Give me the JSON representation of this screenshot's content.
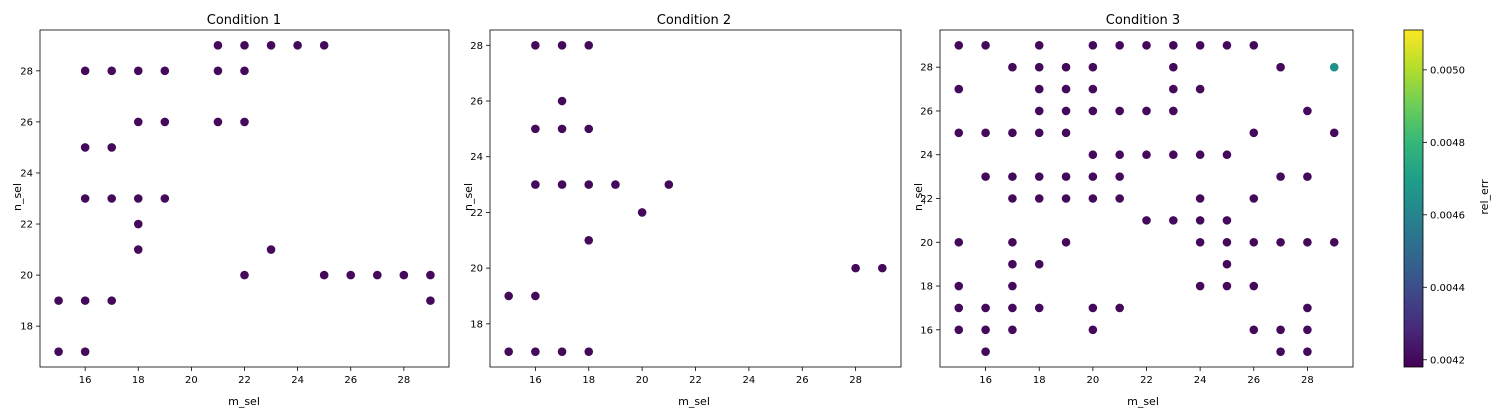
{
  "chart_data": [
    {
      "type": "scatter",
      "title": "Condition 1",
      "xlabel": "m_sel",
      "ylabel": "n_sel",
      "xlim": [
        14.3,
        29.7
      ],
      "ylim": [
        16.4,
        29.6
      ],
      "xticks": [
        16,
        18,
        20,
        22,
        24,
        26,
        28
      ],
      "yticks": [
        18,
        20,
        22,
        24,
        26,
        28
      ],
      "grid": false,
      "points": [
        [
          15,
          17
        ],
        [
          16,
          17
        ],
        [
          15,
          19
        ],
        [
          16,
          19
        ],
        [
          17,
          19
        ],
        [
          16,
          23
        ],
        [
          17,
          23
        ],
        [
          16,
          25
        ],
        [
          17,
          25
        ],
        [
          16,
          28
        ],
        [
          17,
          28
        ],
        [
          18,
          28
        ],
        [
          19,
          28
        ],
        [
          18,
          26
        ],
        [
          19,
          26
        ],
        [
          18,
          23
        ],
        [
          19,
          23
        ],
        [
          18,
          22
        ],
        [
          18,
          21
        ],
        [
          21,
          29
        ],
        [
          22,
          29
        ],
        [
          23,
          29
        ],
        [
          24,
          29
        ],
        [
          25,
          29
        ],
        [
          21,
          28
        ],
        [
          22,
          28
        ],
        [
          21,
          26
        ],
        [
          22,
          26
        ],
        [
          22,
          20
        ],
        [
          23,
          21
        ],
        [
          25,
          20
        ],
        [
          26,
          20
        ],
        [
          27,
          20
        ],
        [
          28,
          20
        ],
        [
          29,
          20
        ],
        [
          29,
          19
        ]
      ],
      "values": [
        0.0042,
        0.0042,
        0.0042,
        0.0042,
        0.0042,
        0.0042,
        0.0042,
        0.0042,
        0.0042,
        0.0042,
        0.0042,
        0.0042,
        0.0042,
        0.0042,
        0.0042,
        0.0042,
        0.0042,
        0.0042,
        0.0042,
        0.0042,
        0.0042,
        0.0042,
        0.0042,
        0.0042,
        0.0042,
        0.0042,
        0.0042,
        0.0042,
        0.0042,
        0.0042,
        0.0042,
        0.0042,
        0.0042,
        0.0042,
        0.0042,
        0.0042
      ]
    },
    {
      "type": "scatter",
      "title": "Condition 2",
      "xlabel": "m_sel",
      "ylabel": "n_sel",
      "xlim": [
        14.3,
        29.7
      ],
      "ylim": [
        16.45,
        28.55
      ],
      "xticks": [
        16,
        18,
        20,
        22,
        24,
        26,
        28
      ],
      "yticks": [
        18,
        20,
        22,
        24,
        26,
        28
      ],
      "grid": false,
      "points": [
        [
          16,
          28
        ],
        [
          17,
          28
        ],
        [
          18,
          28
        ],
        [
          17,
          26
        ],
        [
          16,
          25
        ],
        [
          17,
          25
        ],
        [
          18,
          25
        ],
        [
          16,
          23
        ],
        [
          17,
          23
        ],
        [
          18,
          23
        ],
        [
          19,
          23
        ],
        [
          21,
          23
        ],
        [
          20,
          22
        ],
        [
          18,
          21
        ],
        [
          15,
          19
        ],
        [
          16,
          19
        ],
        [
          15,
          17
        ],
        [
          16,
          17
        ],
        [
          17,
          17
        ],
        [
          18,
          17
        ],
        [
          28,
          20
        ],
        [
          29,
          20
        ]
      ],
      "values": [
        0.0042,
        0.0042,
        0.0042,
        0.0042,
        0.0042,
        0.0042,
        0.0042,
        0.0042,
        0.0042,
        0.0042,
        0.0042,
        0.0042,
        0.0042,
        0.0042,
        0.0042,
        0.0042,
        0.0042,
        0.0042,
        0.0042,
        0.0042,
        0.0042,
        0.0042
      ]
    },
    {
      "type": "scatter",
      "title": "Condition 3",
      "xlabel": "m_sel",
      "ylabel": "n_sel",
      "xlim": [
        14.3,
        29.7
      ],
      "ylim": [
        14.3,
        29.7
      ],
      "xticks": [
        16,
        18,
        20,
        22,
        24,
        26,
        28
      ],
      "yticks": [
        16,
        18,
        20,
        22,
        24,
        26,
        28
      ],
      "grid": false,
      "points": [
        [
          15,
          29
        ],
        [
          16,
          29
        ],
        [
          18,
          29
        ],
        [
          20,
          29
        ],
        [
          21,
          29
        ],
        [
          22,
          29
        ],
        [
          23,
          29
        ],
        [
          24,
          29
        ],
        [
          25,
          29
        ],
        [
          26,
          29
        ],
        [
          17,
          28
        ],
        [
          18,
          28
        ],
        [
          19,
          28
        ],
        [
          20,
          28
        ],
        [
          23,
          28
        ],
        [
          27,
          28
        ],
        [
          29,
          28
        ],
        [
          15,
          27
        ],
        [
          18,
          27
        ],
        [
          19,
          27
        ],
        [
          20,
          27
        ],
        [
          23,
          27
        ],
        [
          24,
          27
        ],
        [
          18,
          26
        ],
        [
          19,
          26
        ],
        [
          20,
          26
        ],
        [
          21,
          26
        ],
        [
          22,
          26
        ],
        [
          23,
          26
        ],
        [
          28,
          26
        ],
        [
          15,
          25
        ],
        [
          16,
          25
        ],
        [
          17,
          25
        ],
        [
          18,
          25
        ],
        [
          19,
          25
        ],
        [
          26,
          25
        ],
        [
          29,
          25
        ],
        [
          20,
          24
        ],
        [
          21,
          24
        ],
        [
          22,
          24
        ],
        [
          23,
          24
        ],
        [
          24,
          24
        ],
        [
          25,
          24
        ],
        [
          16,
          23
        ],
        [
          17,
          23
        ],
        [
          18,
          23
        ],
        [
          19,
          23
        ],
        [
          20,
          23
        ],
        [
          21,
          23
        ],
        [
          27,
          23
        ],
        [
          28,
          23
        ],
        [
          17,
          22
        ],
        [
          18,
          22
        ],
        [
          19,
          22
        ],
        [
          20,
          22
        ],
        [
          21,
          22
        ],
        [
          24,
          22
        ],
        [
          26,
          22
        ],
        [
          22,
          21
        ],
        [
          23,
          21
        ],
        [
          24,
          21
        ],
        [
          25,
          21
        ],
        [
          15,
          20
        ],
        [
          17,
          20
        ],
        [
          19,
          20
        ],
        [
          24,
          20
        ],
        [
          25,
          20
        ],
        [
          26,
          20
        ],
        [
          27,
          20
        ],
        [
          28,
          20
        ],
        [
          29,
          20
        ],
        [
          17,
          19
        ],
        [
          18,
          19
        ],
        [
          25,
          19
        ],
        [
          15,
          18
        ],
        [
          17,
          18
        ],
        [
          24,
          18
        ],
        [
          25,
          18
        ],
        [
          26,
          18
        ],
        [
          15,
          17
        ],
        [
          16,
          17
        ],
        [
          17,
          17
        ],
        [
          18,
          17
        ],
        [
          20,
          17
        ],
        [
          21,
          17
        ],
        [
          28,
          17
        ],
        [
          15,
          16
        ],
        [
          16,
          16
        ],
        [
          17,
          16
        ],
        [
          20,
          16
        ],
        [
          26,
          16
        ],
        [
          27,
          16
        ],
        [
          28,
          16
        ],
        [
          16,
          15
        ],
        [
          27,
          15
        ],
        [
          28,
          15
        ]
      ],
      "values": [
        0.0042,
        0.0042,
        0.0042,
        0.0042,
        0.0042,
        0.0042,
        0.0042,
        0.0042,
        0.0042,
        0.0042,
        0.0042,
        0.0042,
        0.0042,
        0.0042,
        0.0042,
        0.0042,
        0.00465,
        0.0042,
        0.0042,
        0.0042,
        0.0042,
        0.0042,
        0.0042,
        0.0042,
        0.0042,
        0.0042,
        0.0042,
        0.0042,
        0.0042,
        0.0042,
        0.0042,
        0.0042,
        0.0042,
        0.0042,
        0.0042,
        0.0042,
        0.0042,
        0.0042,
        0.0042,
        0.0042,
        0.0042,
        0.0042,
        0.0042,
        0.0042,
        0.0042,
        0.0042,
        0.0042,
        0.0042,
        0.0042,
        0.0042,
        0.0042,
        0.0042,
        0.0042,
        0.0042,
        0.0042,
        0.0042,
        0.0042,
        0.0042,
        0.0042,
        0.0042,
        0.0042,
        0.0042,
        0.0042,
        0.0042,
        0.0042,
        0.0042,
        0.0042,
        0.0042,
        0.0042,
        0.0042,
        0.0042,
        0.0042,
        0.0042,
        0.0042,
        0.0042,
        0.0042,
        0.0042,
        0.0042,
        0.0042,
        0.0042,
        0.0042,
        0.0042,
        0.0042,
        0.0042,
        0.0042,
        0.0042,
        0.0042,
        0.0042,
        0.0042,
        0.0042,
        0.0042,
        0.0042,
        0.0042,
        0.0042,
        0.0042,
        0.0042
      ]
    }
  ],
  "colorbar": {
    "label": "rel_err",
    "colormap": "viridis",
    "range": [
      0.00418,
      0.00511
    ],
    "ticks": [
      "0.0042",
      "0.0044",
      "0.0046",
      "0.0048",
      "0.0050"
    ],
    "tick_values": [
      0.0042,
      0.0044,
      0.0046,
      0.0048,
      0.005
    ]
  },
  "colors": {
    "viridis_stops": [
      "#440154",
      "#482878",
      "#3e4a89",
      "#31688e",
      "#26828e",
      "#1f9e89",
      "#35b779",
      "#6ece58",
      "#b5de2b",
      "#fde725"
    ]
  }
}
